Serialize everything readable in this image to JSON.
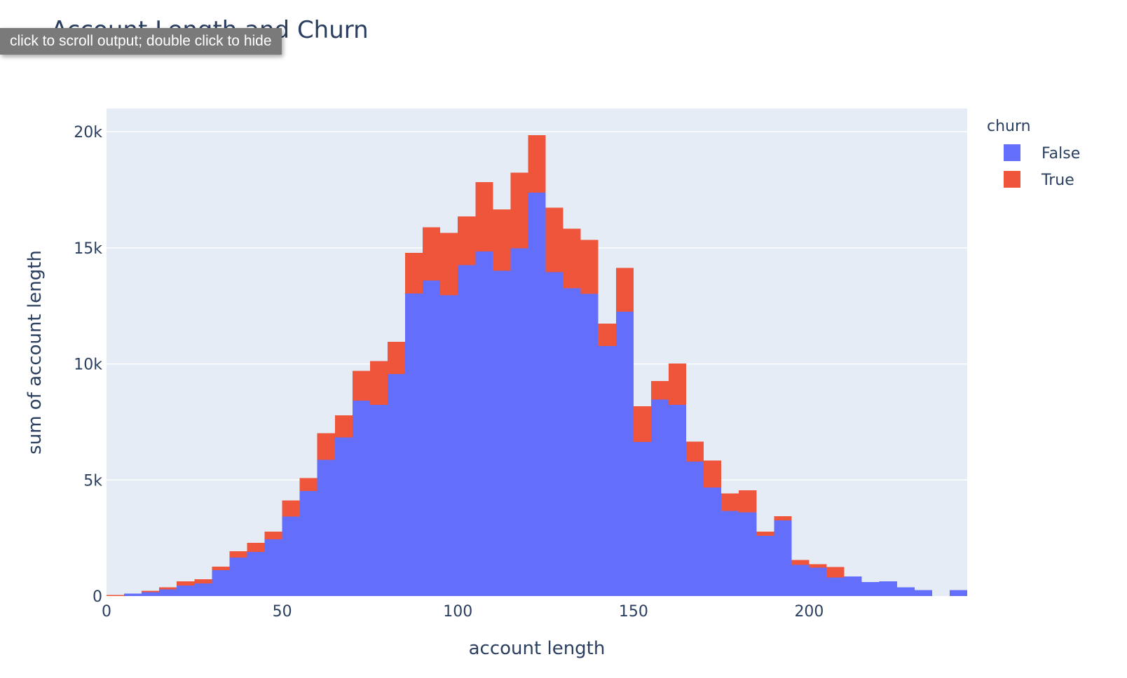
{
  "tooltip": {
    "label": "click to scroll output; double click to hide"
  },
  "chart_data": {
    "type": "bar",
    "barmode": "stack",
    "title": "Account Length and Churn",
    "xlabel": "account length",
    "ylabel": "sum of account length",
    "xlim": [
      0,
      245
    ],
    "ylim": [
      0,
      21000
    ],
    "xticks": [
      0,
      50,
      100,
      150,
      200
    ],
    "xtick_labels": [
      "0",
      "50",
      "100",
      "150",
      "200"
    ],
    "yticks": [
      0,
      5000,
      10000,
      15000,
      20000
    ],
    "ytick_labels": [
      "0",
      "5k",
      "10k",
      "15k",
      "20k"
    ],
    "bin_width": 5,
    "bin_starts": [
      0,
      5,
      10,
      15,
      20,
      25,
      30,
      35,
      40,
      45,
      50,
      55,
      60,
      65,
      70,
      75,
      80,
      85,
      90,
      95,
      100,
      105,
      110,
      115,
      120,
      125,
      130,
      135,
      140,
      145,
      150,
      155,
      160,
      165,
      170,
      175,
      180,
      185,
      190,
      195,
      200,
      205,
      210,
      215,
      220,
      225,
      230,
      235,
      240
    ],
    "legend": {
      "title": "churn",
      "position": "top-right"
    },
    "series": [
      {
        "name": "False",
        "color": "#636efa",
        "values": [
          0,
          100,
          170,
          290,
          460,
          540,
          1120,
          1660,
          1900,
          2440,
          3420,
          4530,
          5870,
          6840,
          8420,
          8230,
          9560,
          13030,
          13600,
          12960,
          14250,
          14850,
          14010,
          14980,
          17380,
          13960,
          13260,
          13020,
          10770,
          12250,
          6640,
          8470,
          8230,
          5800,
          4680,
          3660,
          3600,
          2600,
          3260,
          1350,
          1220,
          800,
          840,
          600,
          630,
          370,
          250,
          0,
          250
        ]
      },
      {
        "name": "True",
        "color": "#ef553b",
        "values": [
          40,
          0,
          60,
          90,
          180,
          180,
          140,
          270,
          400,
          340,
          700,
          560,
          1140,
          940,
          1280,
          1890,
          1390,
          1760,
          2280,
          2690,
          2110,
          2980,
          2640,
          3260,
          2480,
          2770,
          2570,
          2320,
          970,
          1880,
          1530,
          790,
          1780,
          860,
          1160,
          760,
          960,
          180,
          180,
          200,
          160,
          450,
          0,
          0,
          0,
          0,
          0,
          0,
          0
        ]
      }
    ]
  }
}
